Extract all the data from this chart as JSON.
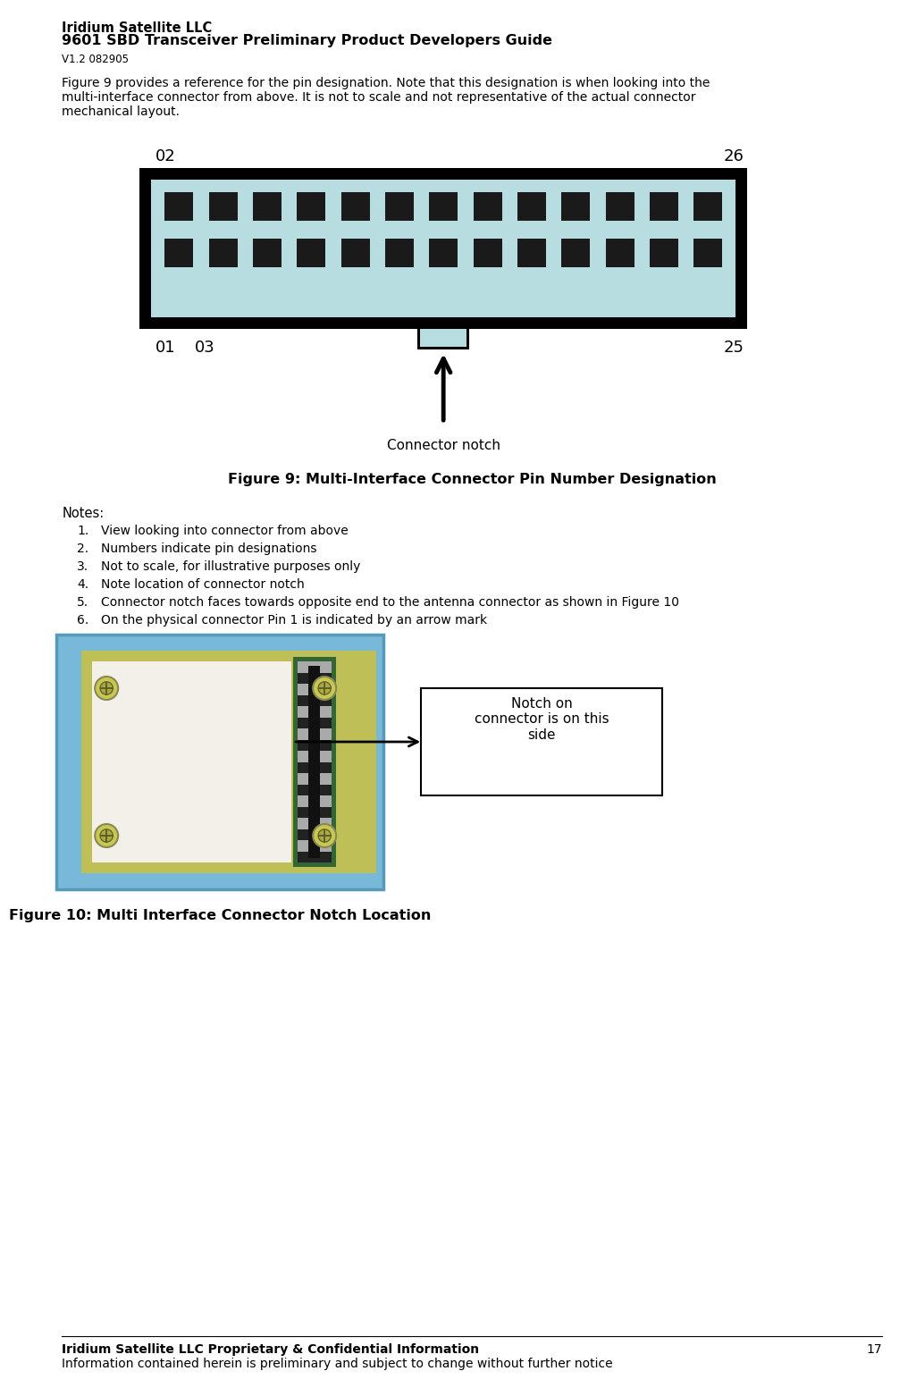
{
  "title_line1": "Iridium Satellite LLC",
  "title_line2": "9601 SBD Transceiver Preliminary Product Developers Guide",
  "title_line3": "V1.2 082905",
  "line1": "Figure 9 provides a reference for the pin designation. Note that this designation is when looking into the",
  "line2": "multi-interface connector from above. It is not to scale and not representative of the actual connector",
  "line3": "mechanical layout.",
  "connector_bg": "#b8dde1",
  "pin_color": "#1a1a1a",
  "label_02": "02",
  "label_26": "26",
  "label_01": "01",
  "label_03": "03",
  "label_25": "25",
  "connector_notch_label": "Connector notch",
  "fig9_caption": "Figure 9: Multi-Interface Connector Pin Number Designation",
  "notes_header": "Notes:",
  "notes": [
    "View looking into connector from above",
    "Numbers indicate pin designations",
    "Not to scale, for illustrative purposes only",
    "Note location of connector notch",
    "Connector notch faces towards opposite end to the antenna connector as shown in Figure 10",
    "On the physical connector Pin 1 is indicated by an arrow mark"
  ],
  "fig10_caption": "Figure 10: Multi Interface Connector Notch Location",
  "notch_box_text": "Notch on\nconnector is on this\nside",
  "footer_line1": "Iridium Satellite LLC Proprietary & Confidential Information",
  "footer_line2": "Information contained herein is preliminary and subject to change without further notice",
  "page_number": "17",
  "bg_color": "#ffffff"
}
